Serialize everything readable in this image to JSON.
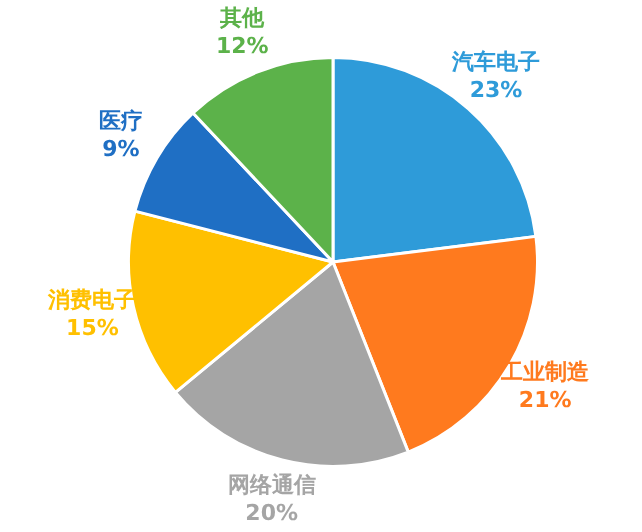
{
  "chart_data": {
    "type": "pie",
    "categories": [
      "汽车电子",
      "工业制造",
      "网络通信",
      "消费电子",
      "医疗",
      "其他"
    ],
    "values": [
      23,
      21,
      20,
      15,
      9,
      12
    ],
    "value_labels": [
      "23%",
      "21%",
      "20%",
      "15%",
      "9%",
      "12%"
    ],
    "colors": [
      "#2e9bd9",
      "#ff7a1e",
      "#a5a5a5",
      "#ffc000",
      "#1f6fc4",
      "#5cb24a"
    ],
    "legend": false
  }
}
